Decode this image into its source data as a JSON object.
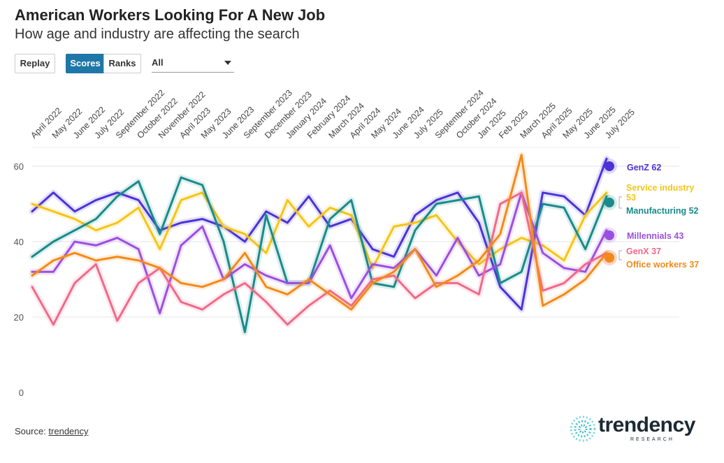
{
  "header": {
    "title": "American Workers Looking For A New Job",
    "subtitle": "How age and industry are affecting the search"
  },
  "controls": {
    "replay_label": "Replay",
    "scores_label": "Scores",
    "ranks_label": "Ranks",
    "filter_value": "All"
  },
  "footer": {
    "source_prefix": "Source: ",
    "source_link": "trendency",
    "logo_text": "trendency",
    "logo_sub": "RESEARCH"
  },
  "chart_data": {
    "type": "line",
    "categories": [
      "April 2022",
      "May 2022",
      "June 2022",
      "July 2022",
      "September 2022",
      "October 2022",
      "November 2022",
      "April 2023",
      "May 2023",
      "June 2023",
      "September 2023",
      "December 2023",
      "January 2024",
      "February 2024",
      "March 2024",
      "April 2024",
      "May 2024",
      "June 2024",
      "July 2025",
      "September 2024",
      "October 2024",
      "Jan 2025",
      "Feb 2025",
      "March 2025",
      "April 2025",
      "May 2025",
      "June 2025",
      "July 2025"
    ],
    "ylim": [
      0,
      65
    ],
    "yticks": [
      0,
      20,
      40,
      60
    ],
    "grid": true,
    "series": [
      {
        "name": "GenZ",
        "color": "#4b33d6",
        "end_label": "GenZ 62",
        "values": [
          48,
          53,
          48,
          51,
          53,
          51,
          43,
          45,
          46,
          44,
          40,
          48,
          45,
          52,
          44,
          46,
          38,
          36,
          47,
          51,
          53,
          45,
          28,
          22,
          53,
          52,
          47,
          62
        ]
      },
      {
        "name": "Service industry",
        "color": "#f5c518",
        "end_label": "Service industry 53",
        "values": [
          50,
          48,
          46,
          43,
          45,
          49,
          38,
          51,
          53,
          44,
          42,
          37,
          51,
          44,
          49,
          47,
          33,
          44,
          45,
          47,
          40,
          34,
          38,
          41,
          39,
          35,
          47,
          53
        ]
      },
      {
        "name": "Manufacturing",
        "color": "#1a8a8a",
        "end_label": "Manufacturing 52",
        "values": [
          36,
          40,
          43,
          46,
          52,
          56,
          42,
          57,
          55,
          40,
          16,
          47,
          29,
          29,
          46,
          51,
          29,
          28,
          43,
          50,
          51,
          52,
          29,
          32,
          50,
          49,
          38,
          52
        ]
      },
      {
        "name": "Millennials",
        "color": "#9b4fe0",
        "end_label": "Millennials 43",
        "values": [
          32,
          32,
          40,
          39,
          41,
          38,
          21,
          39,
          44,
          30,
          34,
          31,
          29,
          29,
          39,
          25,
          34,
          33,
          38,
          31,
          41,
          31,
          34,
          53,
          37,
          33,
          32,
          43
        ]
      },
      {
        "name": "GenX",
        "color": "#f06a8a",
        "end_label": "GenX 37",
        "values": [
          28,
          18,
          29,
          34,
          19,
          29,
          33,
          24,
          22,
          26,
          29,
          24,
          18,
          23,
          27,
          23,
          30,
          31,
          25,
          29,
          29,
          26,
          50,
          53,
          27,
          29,
          34,
          37
        ]
      },
      {
        "name": "Office workers",
        "color": "#f28a1a",
        "end_label": "Office workers 37",
        "values": [
          31,
          35,
          37,
          35,
          36,
          35,
          33,
          29,
          28,
          30,
          37,
          28,
          26,
          30,
          26,
          22,
          29,
          32,
          38,
          28,
          31,
          35,
          42,
          63,
          23,
          26,
          30,
          37
        ]
      }
    ]
  }
}
